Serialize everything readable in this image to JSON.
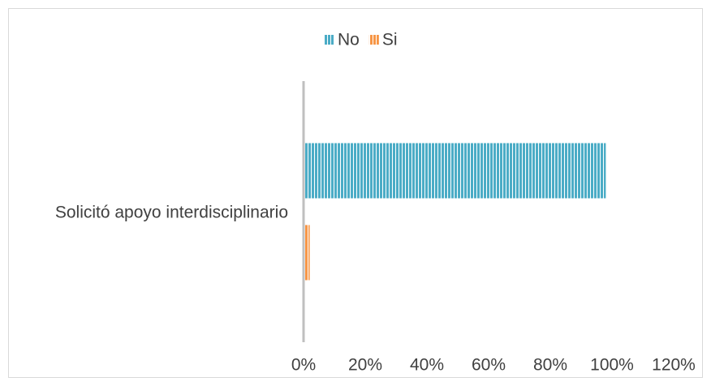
{
  "chart_data": {
    "type": "hbar",
    "categories": [
      "Solicitó apoyo interdisciplinario"
    ],
    "series": [
      {
        "name": "No",
        "color": "#4bacc6",
        "values": [
          98
        ]
      },
      {
        "name": "Si",
        "color": "#f79646",
        "values": [
          2
        ]
      }
    ],
    "xlim": [
      0,
      120
    ],
    "xticks": [
      {
        "value": 0,
        "label": "0%"
      },
      {
        "value": 20,
        "label": "20%"
      },
      {
        "value": 40,
        "label": "40%"
      },
      {
        "value": 60,
        "label": "60%"
      },
      {
        "value": 80,
        "label": "80%"
      },
      {
        "value": 100,
        "label": "100%"
      },
      {
        "value": 120,
        "label": "120%"
      }
    ],
    "legend": "top"
  }
}
